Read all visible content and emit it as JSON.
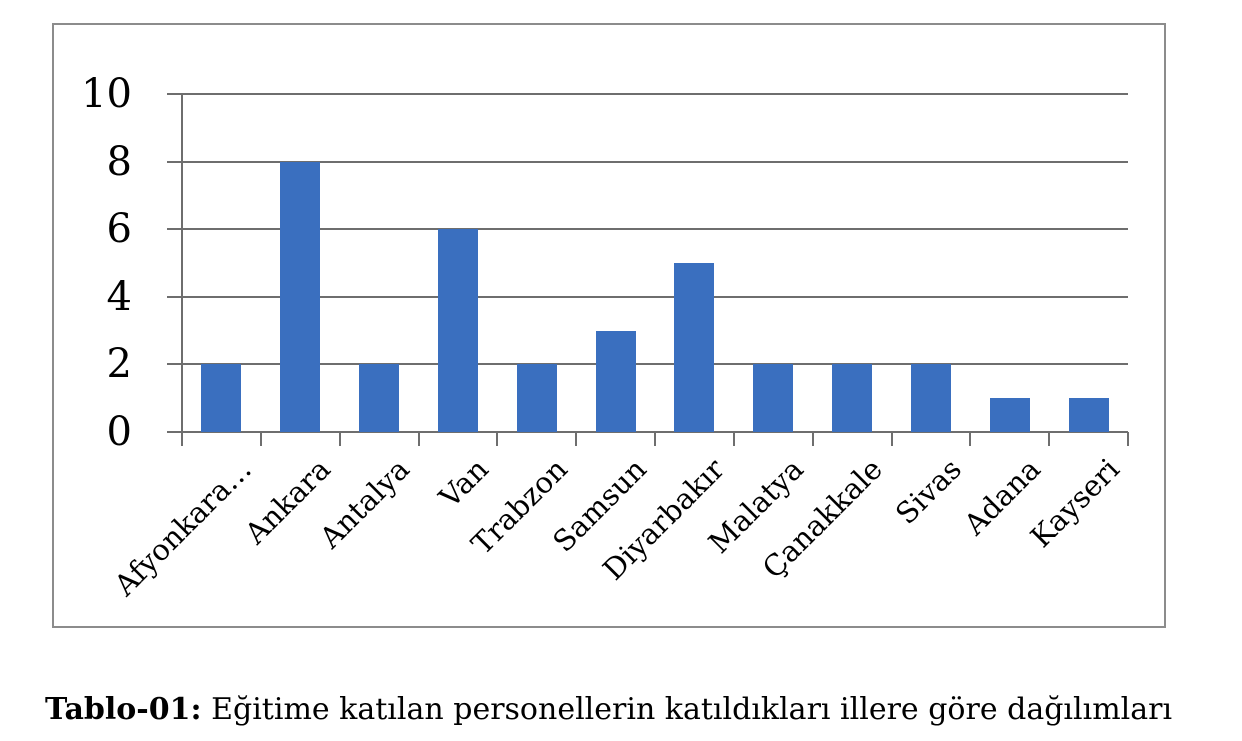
{
  "caption": {
    "label": "Tablo-01:",
    "text": " Eğitime katılan personellerin katıldıkları illere göre dağılımları"
  },
  "chart_data": {
    "type": "bar",
    "categories": [
      "Afyonkara…",
      "Ankara",
      "Antalya",
      "Van",
      "Trabzon",
      "Samsun",
      "Diyarbakır",
      "Malatya",
      "Çanakkale",
      "Sivas",
      "Adana",
      "Kayseri"
    ],
    "values": [
      2,
      8,
      2,
      6,
      2,
      3,
      5,
      2,
      2,
      2,
      1,
      1
    ],
    "title": "",
    "xlabel": "",
    "ylabel": "",
    "ylim": [
      0,
      10
    ],
    "yticks": [
      0,
      2,
      4,
      6,
      8,
      10
    ],
    "grid": true,
    "legend": false,
    "bar_color": "#3A6FBF",
    "grid_color": "#6E6E6E",
    "frame_border_color": "#8C8C8C",
    "label_color": "#000000"
  }
}
